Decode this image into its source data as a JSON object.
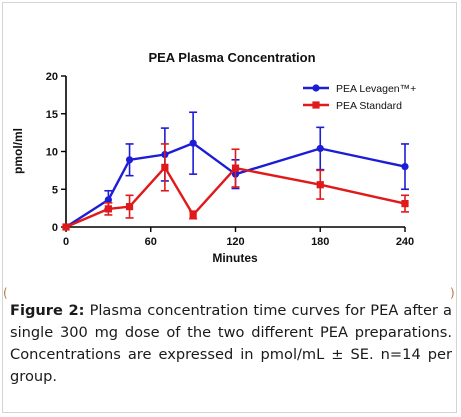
{
  "chart_data": {
    "type": "line",
    "title": "PEA Plasma Concentration",
    "xlabel": "Minutes",
    "ylabel": "pmol/ml",
    "xlim": [
      0,
      240
    ],
    "ylim": [
      0,
      20
    ],
    "x_ticks": [
      0,
      60,
      120,
      180,
      240
    ],
    "y_ticks": [
      0,
      5,
      10,
      15,
      20
    ],
    "legend_position": "top-right",
    "grid": false,
    "series": [
      {
        "name": "PEA Levagen™+",
        "color": "#1d1dd6",
        "marker": "circle",
        "points": [
          {
            "x": 0,
            "y": 0,
            "err": 0
          },
          {
            "x": 30,
            "y": 3.6,
            "err": 1.2
          },
          {
            "x": 45,
            "y": 8.9,
            "err": 2.1
          },
          {
            "x": 70,
            "y": 9.6,
            "err": 3.5
          },
          {
            "x": 90,
            "y": 11.1,
            "err": 4.1
          },
          {
            "x": 120,
            "y": 7.0,
            "err": 1.9
          },
          {
            "x": 180,
            "y": 10.4,
            "err": 2.8
          },
          {
            "x": 240,
            "y": 8.0,
            "err": 3.0
          }
        ]
      },
      {
        "name": "PEA Standard",
        "color": "#e01a1a",
        "marker": "square",
        "points": [
          {
            "x": 0,
            "y": 0,
            "err": 0
          },
          {
            "x": 30,
            "y": 2.4,
            "err": 0.8
          },
          {
            "x": 45,
            "y": 2.7,
            "err": 1.5
          },
          {
            "x": 70,
            "y": 7.9,
            "err": 3.1
          },
          {
            "x": 90,
            "y": 1.6,
            "err": 0.5
          },
          {
            "x": 120,
            "y": 7.8,
            "err": 2.5
          },
          {
            "x": 180,
            "y": 5.6,
            "err": 1.9
          },
          {
            "x": 240,
            "y": 3.1,
            "err": 1.1
          }
        ]
      }
    ]
  },
  "caption": {
    "label": "Figure 2:",
    "text": " Plasma concentration time curves for PEA after a single 300 mg dose of the two different PEA preparations. Concentrations are expressed in pmol/mL ± SE. n=14 per group."
  },
  "side_marks": {
    "left": "(",
    "right": ")"
  }
}
